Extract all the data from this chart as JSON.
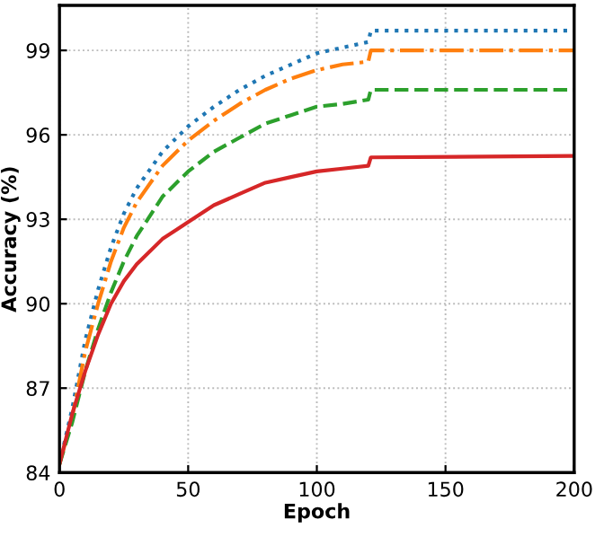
{
  "chart_data": {
    "type": "line",
    "xlabel": "Epoch",
    "ylabel": "Accuracy (%)",
    "xlim": [
      0,
      200
    ],
    "xticks": [
      0,
      50,
      100,
      150,
      200
    ],
    "ylim": [
      84,
      100.6
    ],
    "yticks": [
      84,
      87,
      90,
      93,
      96,
      99
    ],
    "grid": true,
    "marker": "none",
    "x": [
      0,
      5,
      10,
      15,
      20,
      25,
      30,
      40,
      50,
      60,
      70,
      80,
      90,
      100,
      110,
      120,
      121,
      200
    ],
    "series": [
      {
        "color": "#1f77b4",
        "line_style": "dotted",
        "values": [
          84.3,
          86.3,
          88.7,
          90.5,
          92.0,
          93.2,
          94.1,
          95.4,
          96.3,
          97.0,
          97.6,
          98.1,
          98.5,
          98.9,
          99.1,
          99.3,
          99.7,
          99.7
        ]
      },
      {
        "color": "#ff7f0e",
        "line_style": "dashdot",
        "values": [
          84.3,
          86.0,
          88.3,
          90.0,
          91.5,
          92.7,
          93.6,
          94.9,
          95.8,
          96.5,
          97.1,
          97.6,
          98.0,
          98.3,
          98.5,
          98.6,
          99.0,
          99.0
        ]
      },
      {
        "color": "#2ca02c",
        "line_style": "dashed",
        "values": [
          84.3,
          85.8,
          87.6,
          89.1,
          90.4,
          91.5,
          92.4,
          93.8,
          94.7,
          95.4,
          95.9,
          96.4,
          96.7,
          97.0,
          97.1,
          97.25,
          97.6,
          97.6
        ]
      },
      {
        "color": "#d62728",
        "line_style": "solid",
        "values": [
          84.3,
          86.1,
          87.6,
          88.9,
          90.0,
          90.8,
          91.4,
          92.3,
          92.9,
          93.5,
          93.9,
          94.3,
          94.5,
          94.7,
          94.8,
          94.9,
          95.2,
          95.25
        ]
      }
    ]
  }
}
